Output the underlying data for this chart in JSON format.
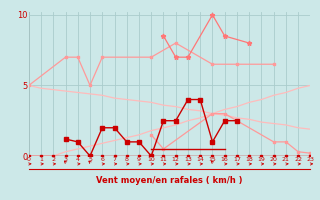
{
  "bg_color": "#cce8e8",
  "grid_color": "#aacccc",
  "dark_red": "#cc0000",
  "salmon": "#ff9999",
  "light_salmon": "#ffbbbb",
  "xlabel": "Vent moyen/en rafales ( km/h )",
  "ylabel_ticks": [
    0,
    5,
    10
  ],
  "xlim": [
    0,
    23
  ],
  "ylim": [
    0,
    10.2
  ],
  "x_all": [
    0,
    1,
    2,
    3,
    4,
    5,
    6,
    7,
    8,
    9,
    10,
    11,
    12,
    13,
    14,
    15,
    16,
    17,
    18,
    19,
    20,
    21,
    22,
    23
  ],
  "line_dec_x": [
    0,
    1,
    2,
    3,
    4,
    5,
    6,
    7,
    8,
    9,
    10,
    11,
    12,
    13,
    14,
    15,
    16,
    17,
    18,
    19,
    20,
    21,
    22,
    23
  ],
  "line_dec_y": [
    5.0,
    4.8,
    4.7,
    4.6,
    4.5,
    4.4,
    4.3,
    4.1,
    4.0,
    3.9,
    3.8,
    3.6,
    3.5,
    3.3,
    3.2,
    3.0,
    2.9,
    2.7,
    2.6,
    2.4,
    2.3,
    2.2,
    2.0,
    1.9
  ],
  "line_inc_x": [
    0,
    1,
    2,
    3,
    4,
    5,
    6,
    7,
    8,
    9,
    10,
    11,
    12,
    13,
    14,
    15,
    16,
    17,
    18,
    19,
    20,
    21,
    22,
    23
  ],
  "line_inc_y": [
    0.0,
    0.0,
    0.0,
    0.3,
    0.5,
    0.7,
    0.9,
    1.1,
    1.3,
    1.5,
    1.8,
    2.0,
    2.2,
    2.5,
    2.7,
    3.0,
    3.3,
    3.5,
    3.8,
    4.0,
    4.3,
    4.5,
    4.8,
    5.0
  ],
  "line_salmon_top_x": [
    0,
    3,
    4,
    5,
    6,
    10,
    12,
    15,
    17,
    20
  ],
  "line_salmon_top_y": [
    5.0,
    7.0,
    7.0,
    5.0,
    7.0,
    7.0,
    8.0,
    6.5,
    6.5,
    6.5
  ],
  "line_pink_spike_x": [
    11,
    12,
    13,
    15,
    16,
    18
  ],
  "line_pink_spike_y": [
    8.5,
    7.0,
    7.0,
    10.0,
    8.5,
    8.0
  ],
  "line_salmon_mid_x": [
    10,
    11,
    15,
    16,
    20,
    21,
    22,
    23
  ],
  "line_salmon_mid_y": [
    1.5,
    0.5,
    3.0,
    3.0,
    1.0,
    1.0,
    0.3,
    0.2
  ],
  "line_dr_base_x": [
    0,
    1,
    2,
    3,
    4,
    5,
    6,
    7,
    8,
    9,
    10,
    11,
    12,
    13,
    14,
    15,
    16,
    17,
    18,
    19,
    20,
    21,
    22,
    23
  ],
  "line_dr_base_y": [
    0,
    0,
    0,
    0,
    0,
    0,
    0,
    0,
    0,
    0,
    0,
    0,
    0,
    0,
    0,
    0,
    0,
    0,
    0,
    0,
    0,
    0,
    0,
    0
  ],
  "line_dr_act_x": [
    3,
    4,
    5,
    6,
    7,
    8,
    9,
    10,
    11,
    12,
    13,
    14,
    15,
    16,
    17
  ],
  "line_dr_act_y": [
    1.2,
    1.0,
    0.0,
    2.0,
    2.0,
    1.0,
    1.0,
    0.0,
    2.5,
    2.5,
    4.0,
    4.0,
    1.0,
    2.5,
    2.5
  ],
  "line_dr_flat_x": [
    10,
    11,
    12,
    13,
    14,
    15,
    16
  ],
  "line_dr_flat_y": [
    0.5,
    0.5,
    0.5,
    0.5,
    0.5,
    0.5,
    0.5
  ],
  "arrows_x": [
    0,
    1,
    2,
    3,
    4,
    5,
    6,
    7,
    8,
    9,
    10,
    11,
    12,
    13,
    14,
    15,
    16,
    17,
    18,
    19,
    20,
    21,
    22,
    23
  ],
  "arrows_rotated": [
    3,
    5,
    15
  ]
}
